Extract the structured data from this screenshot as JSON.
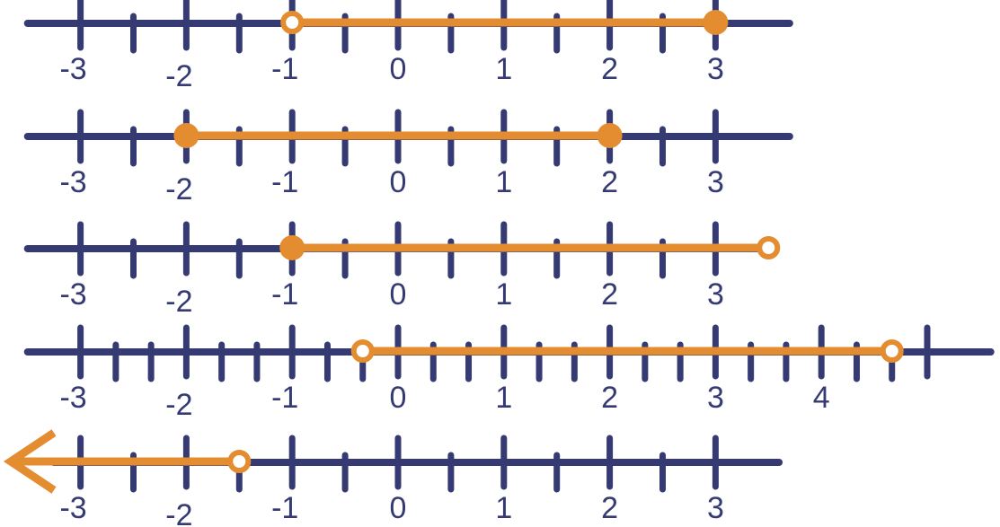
{
  "colors": {
    "axis": "#353a72",
    "interval": "#e38d30"
  },
  "number_lines": [
    {
      "ticks_per_unit": 2,
      "labels": [
        "-3",
        "-2",
        "-1",
        "0",
        "1",
        "2",
        "3"
      ],
      "label_values": [
        -3,
        -2,
        -1,
        0,
        1,
        2,
        3
      ],
      "range": [
        -3.5,
        3.7
      ],
      "interval": {
        "from": -1,
        "to": 3,
        "from_marker": "open",
        "to_marker": "closed"
      }
    },
    {
      "ticks_per_unit": 2,
      "labels": [
        "-3",
        "-2",
        "-1",
        "0",
        "1",
        "2",
        "3"
      ],
      "label_values": [
        -3,
        -2,
        -1,
        0,
        1,
        2,
        3
      ],
      "range": [
        -3.5,
        3.7
      ],
      "interval": {
        "from": -2,
        "to": 2,
        "from_marker": "closed",
        "to_marker": "closed"
      }
    },
    {
      "ticks_per_unit": 2,
      "labels": [
        "-3",
        "-2",
        "-1",
        "0",
        "1",
        "2",
        "3"
      ],
      "label_values": [
        -3,
        -2,
        -1,
        0,
        1,
        2,
        3
      ],
      "range": [
        -3.5,
        3.55
      ],
      "interval": {
        "from": -1,
        "to": 3.5,
        "from_marker": "closed",
        "to_marker": "open"
      }
    },
    {
      "ticks_per_unit": 3,
      "labels": [
        "-3",
        "-2",
        "-1",
        "0",
        "1",
        "2",
        "4"
      ],
      "label_values": [
        -3,
        -2,
        -1,
        0,
        1,
        2,
        4
      ],
      "extra_labels": [
        "3"
      ],
      "extra_label_values": [
        3
      ],
      "range": [
        -3.5,
        5.6
      ],
      "interval": {
        "from": -0.3333,
        "to": 4.6667,
        "from_marker": "open",
        "to_marker": "open"
      }
    },
    {
      "ticks_per_unit": 2,
      "labels": [
        "-3",
        "-2",
        "-1",
        "0",
        "1",
        "2",
        "3"
      ],
      "label_values": [
        -3,
        -2,
        -1,
        0,
        1,
        2,
        3
      ],
      "range": [
        -3.3,
        3.6
      ],
      "interval": {
        "from": "-infinity",
        "to": -1.5,
        "from_marker": "arrow",
        "to_marker": "open"
      }
    }
  ]
}
